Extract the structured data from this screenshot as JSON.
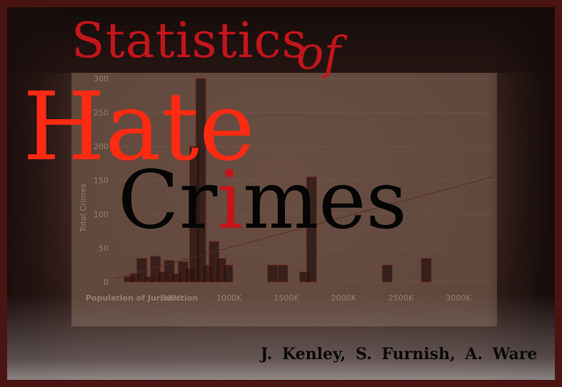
{
  "title": {
    "statistics": "Statistics",
    "of": "of",
    "hate": "Hate",
    "crimes_before_i": "Cr",
    "crimes_i": "i",
    "crimes_after_i": "mes"
  },
  "authors": "J. Kenley,  S. Furnish,  A. Ware",
  "colors": {
    "title_red": "#c4141c",
    "hate_red": "#ff2a12",
    "crimes_black": "#050505",
    "frame": "#4a1510"
  },
  "chart_data": {
    "type": "bar",
    "ylabel": "Total Crimes",
    "xlabel": "Population of Jurisdiction",
    "yticks": [
      "0",
      "50",
      "100",
      "150",
      "200",
      "250",
      "300"
    ],
    "xticks": [
      "500K",
      "1000K",
      "1500K",
      "2000K",
      "2500K",
      "3000K"
    ],
    "ylim": [
      0,
      300
    ],
    "xlim": [
      0,
      3300
    ],
    "bars": [
      {
        "x": 130,
        "y": 8
      },
      {
        "x": 180,
        "y": 12
      },
      {
        "x": 240,
        "y": 35
      },
      {
        "x": 300,
        "y": 8
      },
      {
        "x": 360,
        "y": 38
      },
      {
        "x": 420,
        "y": 15
      },
      {
        "x": 480,
        "y": 32
      },
      {
        "x": 540,
        "y": 12
      },
      {
        "x": 600,
        "y": 30
      },
      {
        "x": 660,
        "y": 20
      },
      {
        "x": 700,
        "y": 200
      },
      {
        "x": 755,
        "y": 300
      },
      {
        "x": 810,
        "y": 25
      },
      {
        "x": 870,
        "y": 60
      },
      {
        "x": 930,
        "y": 35
      },
      {
        "x": 990,
        "y": 25
      },
      {
        "x": 1380,
        "y": 25
      },
      {
        "x": 1470,
        "y": 25
      },
      {
        "x": 1660,
        "y": 15
      },
      {
        "x": 1720,
        "y": 155
      },
      {
        "x": 2380,
        "y": 25
      },
      {
        "x": 2720,
        "y": 35
      }
    ],
    "trendline": {
      "x": [
        0,
        3300
      ],
      "y": [
        5,
        155
      ]
    }
  }
}
